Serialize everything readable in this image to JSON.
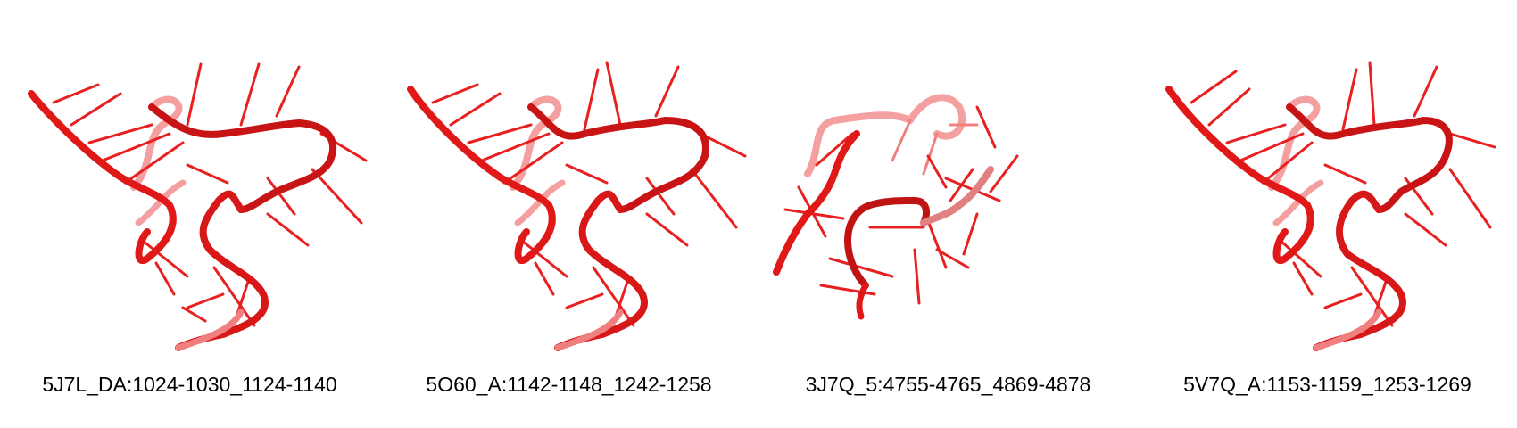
{
  "colors": {
    "background": "#ffffff",
    "tube_front": "#e01818",
    "tube_back": "#f08080",
    "tube_dark": "#a01010",
    "base": "#e82020",
    "caption": "#000000"
  },
  "panels": [
    {
      "label": "5J7L_DA:1024-1030_1124-1140"
    },
    {
      "label": "5O60_A:1142-1148_1242-1258"
    },
    {
      "label": "3J7Q_5:4755-4765_4869-4878"
    },
    {
      "label": "5V7Q_A:1153-1159_1253-1269"
    }
  ]
}
